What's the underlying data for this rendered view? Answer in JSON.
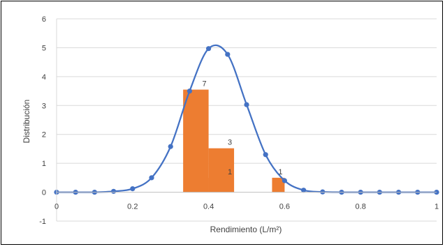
{
  "chart_data": {
    "type": "bar",
    "xlabel": "Rendimiento (L/m²)",
    "ylabel": "Distribución",
    "xlim": [
      0,
      1
    ],
    "ylim": [
      -1,
      6
    ],
    "x_ticks": [
      "0",
      "0.2",
      "0.4",
      "0.6",
      "0.8",
      "1"
    ],
    "y_ticks": [
      "6",
      "5",
      "4",
      "3",
      "2",
      "1",
      "0",
      "-1"
    ],
    "grid": "horizontal",
    "legend": "none",
    "bars": [
      {
        "x0": 0.333,
        "x1": 0.4,
        "value": 3.55,
        "label": "7"
      },
      {
        "x0": 0.4,
        "x1": 0.467,
        "value": 1.52,
        "label": "3"
      },
      {
        "x0": 0.4,
        "x1": 0.467,
        "value": 0.5,
        "label": "1"
      },
      {
        "x0": 0.567,
        "x1": 0.6,
        "value": 0.5,
        "label": "1"
      }
    ],
    "series": [
      {
        "type": "line",
        "smooth": true,
        "markers": true,
        "points": [
          [
            0.0,
            0.0
          ],
          [
            0.05,
            0.0
          ],
          [
            0.1,
            0.0
          ],
          [
            0.15,
            0.03
          ],
          [
            0.2,
            0.12
          ],
          [
            0.25,
            0.5
          ],
          [
            0.3,
            1.58
          ],
          [
            0.35,
            3.5
          ],
          [
            0.4,
            4.97
          ],
          [
            0.45,
            4.77
          ],
          [
            0.5,
            3.03
          ],
          [
            0.55,
            1.3
          ],
          [
            0.6,
            0.4
          ],
          [
            0.65,
            0.07
          ],
          [
            0.7,
            0.01
          ],
          [
            0.75,
            0.0
          ],
          [
            0.8,
            0.0
          ],
          [
            0.85,
            0.0
          ],
          [
            0.9,
            0.0
          ],
          [
            0.95,
            0.0
          ],
          [
            1.0,
            0.0
          ]
        ]
      }
    ],
    "colors": {
      "bars": "#ED7D31",
      "line": "#4472C4",
      "grid": "#D9D9D9",
      "text": "#404040"
    }
  }
}
